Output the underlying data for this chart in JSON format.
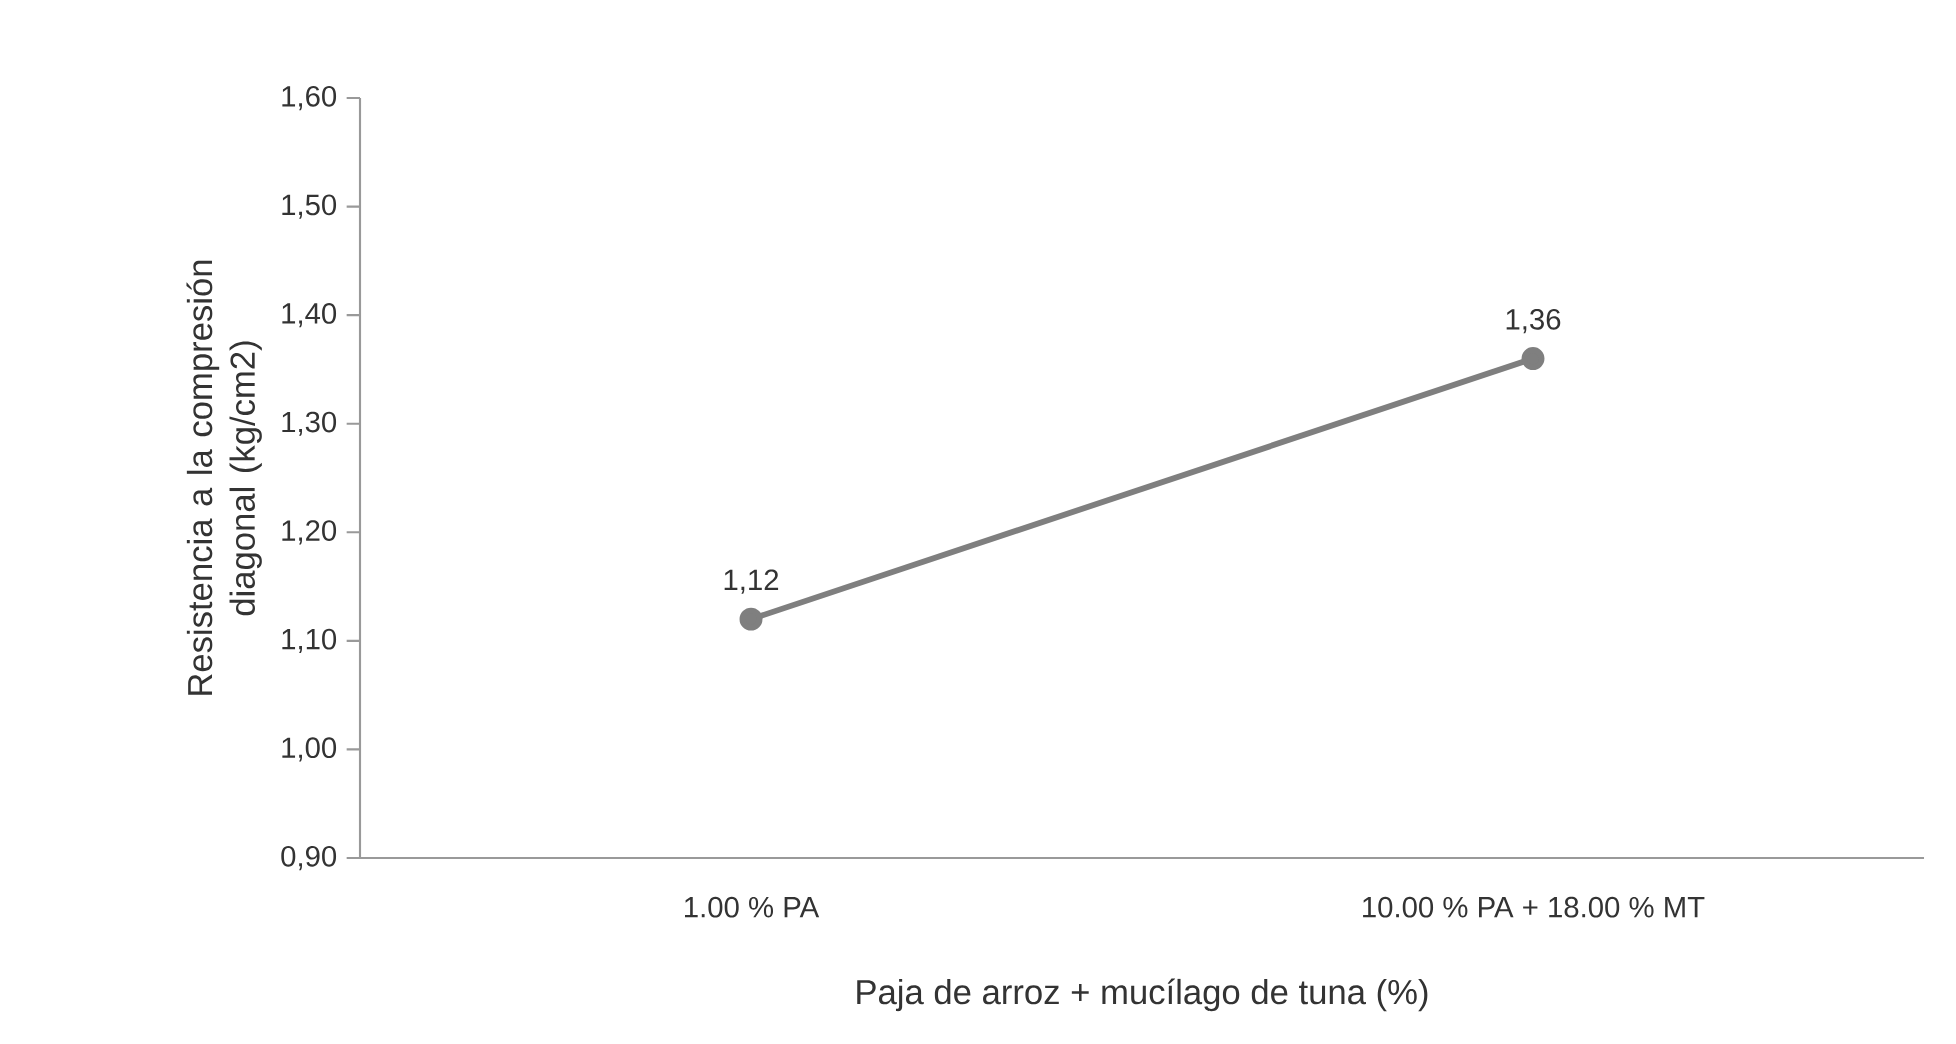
{
  "chart_data": {
    "type": "line",
    "xlabel": "Paja de arroz + mucílago de tuna (%)",
    "ylabel": "Resistencia a la compresión diagonal (kg/cm2)",
    "categories": [
      "1.00 % PA",
      "10.00 % PA + 18.00 % MT"
    ],
    "series": [
      {
        "color": "#7f7f7f",
        "values": [
          1.12,
          1.36
        ],
        "value_labels": [
          "1,12",
          "1,36"
        ]
      }
    ],
    "ylim": [
      0.9,
      1.6
    ],
    "yticks": [
      {
        "value": 0.9,
        "label": "0,90"
      },
      {
        "value": 1.0,
        "label": "1,00"
      },
      {
        "value": 1.1,
        "label": "1,10"
      },
      {
        "value": 1.2,
        "label": "1,20"
      },
      {
        "value": 1.3,
        "label": "1,30"
      },
      {
        "value": 1.4,
        "label": "1,40"
      },
      {
        "value": 1.5,
        "label": "1,50"
      },
      {
        "value": 1.6,
        "label": "1,60"
      }
    ],
    "marker": "circle",
    "line_style": "solid"
  }
}
